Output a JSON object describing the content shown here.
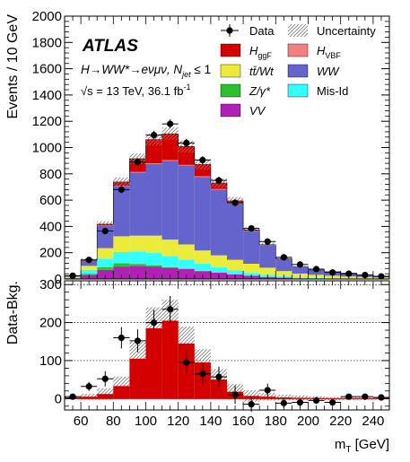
{
  "chart_data": [
    {
      "type": "bar",
      "stacked": true,
      "ylabel": "Events / 10 GeV",
      "ylim": [
        0,
        2000
      ],
      "yticks": [
        0,
        200,
        400,
        600,
        800,
        1000,
        1200,
        1400,
        1600,
        1800,
        2000
      ],
      "annotations": {
        "experiment": "ATLAS",
        "process": "H→WW*→eνμν, N",
        "process_sub": "jet",
        "process_suffix": " ≤ 1",
        "energy": "√s = 13 TeV, 36.1 fb",
        "energy_sup": "-1"
      },
      "x": [
        55,
        65,
        75,
        85,
        95,
        105,
        115,
        125,
        135,
        145,
        155,
        165,
        175,
        185,
        195,
        205,
        215,
        225,
        235,
        245
      ],
      "series": [
        {
          "name": "VV",
          "color": "#b21fb6",
          "values": [
            5,
            30,
            70,
            95,
            100,
            95,
            85,
            75,
            60,
            48,
            35,
            25,
            15,
            10,
            5,
            3,
            2,
            2,
            1,
            1
          ]
        },
        {
          "name": "Z/γ*",
          "color": "#2dbf2d",
          "values": [
            2,
            10,
            20,
            25,
            15,
            10,
            5,
            3,
            2,
            2,
            1,
            1,
            1,
            0,
            0,
            0,
            0,
            0,
            0,
            0
          ]
        },
        {
          "name": "Mis-Id",
          "color": "#33ffff",
          "values": [
            5,
            30,
            65,
            85,
            95,
            95,
            85,
            70,
            55,
            40,
            30,
            20,
            15,
            10,
            6,
            4,
            3,
            2,
            2,
            1
          ]
        },
        {
          "name": "tt̄/Wt",
          "color": "#ebeb3a",
          "values": [
            5,
            30,
            80,
            120,
            120,
            130,
            125,
            115,
            100,
            90,
            80,
            70,
            55,
            40,
            30,
            25,
            20,
            15,
            12,
            10
          ]
        },
        {
          "name": "WW",
          "color": "#6464cc",
          "values": [
            5,
            40,
            170,
            380,
            480,
            545,
            600,
            600,
            560,
            500,
            430,
            250,
            170,
            90,
            50,
            35,
            30,
            25,
            15,
            10
          ]
        },
        {
          "name": "H_VBF",
          "color": "#f47f7f",
          "values": [
            0,
            0,
            2,
            3,
            5,
            5,
            5,
            5,
            5,
            5,
            3,
            2,
            2,
            1,
            1,
            0,
            0,
            0,
            0,
            0
          ]
        },
        {
          "name": "H_ggF",
          "color": "#d40000",
          "values": [
            3,
            5,
            10,
            30,
            100,
            180,
            200,
            140,
            90,
            45,
            15,
            5,
            3,
            2,
            1,
            1,
            0,
            0,
            0,
            0
          ]
        }
      ],
      "uncertainty_band": [
        4,
        12,
        22,
        35,
        40,
        45,
        48,
        45,
        40,
        35,
        30,
        20,
        15,
        10,
        8,
        6,
        5,
        5,
        4,
        3
      ],
      "data": {
        "name": "Data",
        "values": [
          25,
          145,
          365,
          680,
          890,
          1095,
          1180,
          1035,
          905,
          750,
          580,
          385,
          285,
          165,
          110,
          75,
          50,
          40,
          30,
          20
        ]
      },
      "legend": {
        "placement": "top-right",
        "entries": [
          "Data",
          "Uncertainty",
          "H_ggF",
          "H_VBF",
          "tt̄/Wt",
          "WW",
          "Z/γ*",
          "Mis-Id",
          "VV"
        ]
      }
    },
    {
      "type": "scatter",
      "ylabel": "Data-Bkg.",
      "xlabel": "m",
      "xlabel_sub": "T",
      "xlabel_unit": " [GeV]",
      "xlim": [
        50,
        250
      ],
      "xticks": [
        60,
        80,
        100,
        120,
        140,
        160,
        180,
        200,
        220,
        240
      ],
      "ylim": [
        -30,
        310
      ],
      "yticks": [
        0,
        100,
        200,
        300
      ],
      "grid_lines": [
        100,
        200,
        300
      ],
      "x": [
        55,
        65,
        75,
        85,
        95,
        105,
        115,
        125,
        135,
        145,
        155,
        165,
        175,
        185,
        195,
        205,
        215,
        225,
        235,
        245
      ],
      "signal": [
        3,
        5,
        12,
        33,
        105,
        185,
        205,
        145,
        95,
        50,
        18,
        7,
        5,
        3,
        2,
        1,
        0,
        0,
        0,
        0
      ],
      "signal_band": [
        5,
        15,
        30,
        50,
        90,
        110,
        110,
        90,
        70,
        55,
        40,
        30,
        20,
        15,
        12,
        10,
        8,
        7,
        6,
        5
      ],
      "values": [
        5,
        32,
        52,
        160,
        152,
        200,
        235,
        95,
        65,
        57,
        10,
        -15,
        22,
        -12,
        -10,
        -5,
        -10,
        5,
        5,
        3
      ],
      "errors": [
        5,
        12,
        20,
        28,
        30,
        33,
        35,
        32,
        30,
        27,
        24,
        20,
        17,
        13,
        10,
        9,
        7,
        6,
        5,
        5
      ]
    }
  ]
}
